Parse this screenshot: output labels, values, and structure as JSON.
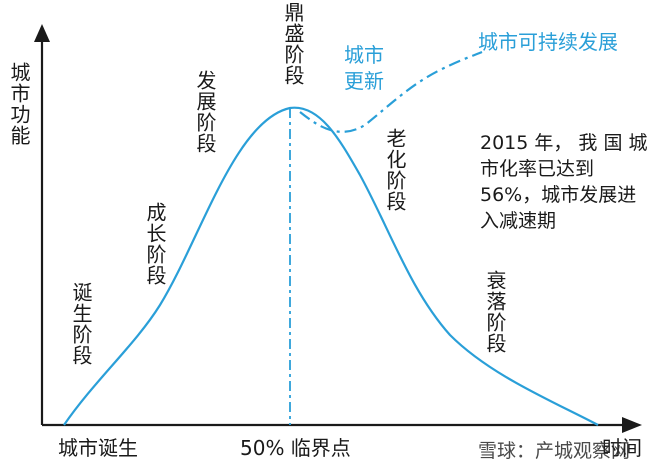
{
  "axes": {
    "y_label": "城市功能",
    "x_label": "时间"
  },
  "x_ticks": {
    "birth": "城市诞生",
    "critical": "50% 临界点"
  },
  "stages": {
    "birth": "诞生阶段",
    "growth": "成长阶段",
    "development": "发展阶段",
    "peak": "鼎盛阶段",
    "aging": "老化阶段",
    "decline": "衰落阶段"
  },
  "branches": {
    "renewal": "城市更新",
    "sustainable": "城市可持续发展"
  },
  "note": "2015 年， 我 国 城市化率已达到 56%，城市发展进入减速期",
  "watermark": "雪球：产城观察网",
  "colors": {
    "curve": "#2a9fd8",
    "axis": "#1a1a1a",
    "text": "#1a1a1a"
  }
}
